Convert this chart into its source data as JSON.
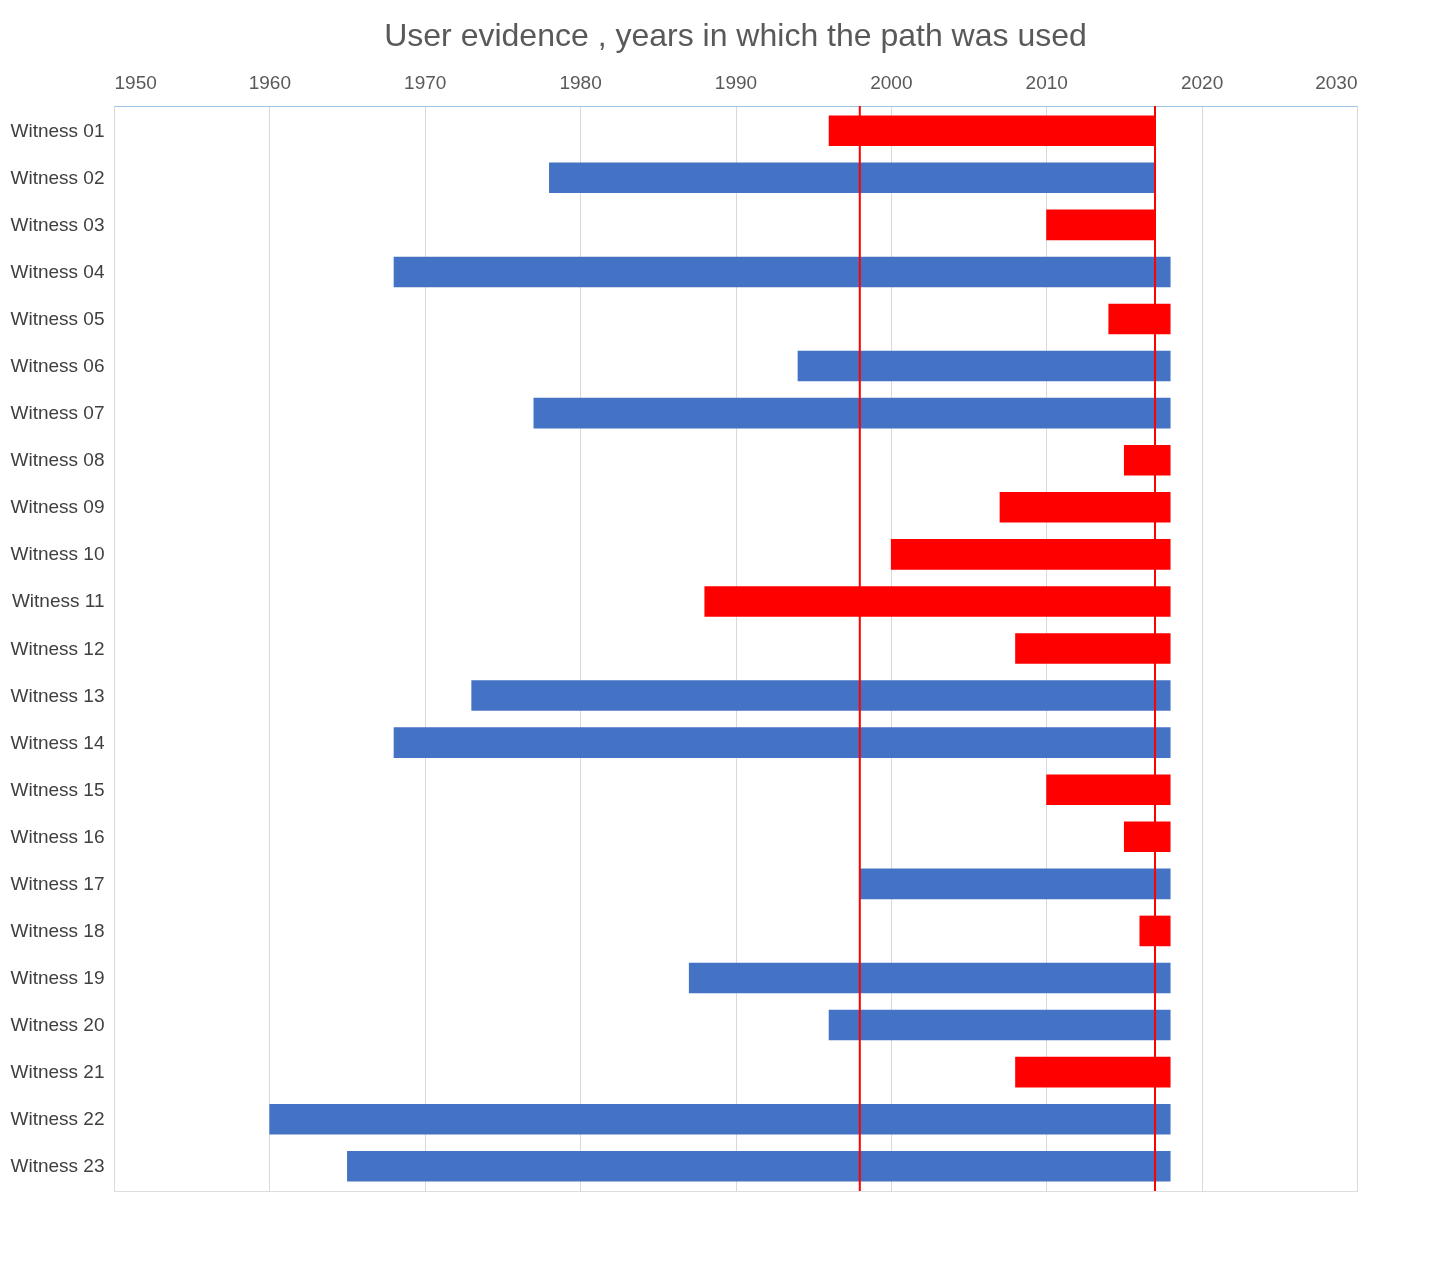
{
  "chart_data": {
    "type": "bar",
    "orientation": "horizontal",
    "title": "User evidence , years in which the path was used",
    "categories": [
      "Witness 01",
      "Witness 02",
      "Witness 03",
      "Witness 04",
      "Witness 05",
      "Witness 06",
      "Witness 07",
      "Witness 08",
      "Witness 09",
      "Witness 10",
      "Witness 11",
      "Witness 12",
      "Witness 13",
      "Witness 14",
      "Witness 15",
      "Witness 16",
      "Witness 17",
      "Witness 18",
      "Witness 19",
      "Witness 20",
      "Witness 21",
      "Witness 22",
      "Witness 23"
    ],
    "base": [
      1996,
      1978,
      2010,
      1968,
      2014,
      1994,
      1977,
      2015,
      2007,
      2000,
      1988,
      2008,
      1973,
      1968,
      2010,
      2015,
      1998,
      2016,
      1987,
      1996,
      2008,
      1960,
      1965
    ],
    "values": [
      21,
      39,
      7,
      50,
      4,
      24,
      41,
      3,
      11,
      18,
      30,
      10,
      45,
      50,
      8,
      3,
      20,
      2,
      31,
      22,
      10,
      58,
      53
    ],
    "colors": [
      "#ff0000",
      "#4472c4",
      "#ff0000",
      "#4472c4",
      "#ff0000",
      "#4472c4",
      "#4472c4",
      "#ff0000",
      "#ff0000",
      "#ff0000",
      "#ff0000",
      "#ff0000",
      "#4472c4",
      "#4472c4",
      "#ff0000",
      "#ff0000",
      "#4472c4",
      "#ff0000",
      "#4472c4",
      "#4472c4",
      "#ff0000",
      "#4472c4",
      "#4472c4"
    ],
    "xlim": [
      1950,
      2030
    ],
    "xticks": [
      1950,
      1960,
      1970,
      1980,
      1990,
      2000,
      2010,
      2020,
      2030
    ],
    "grid": "x",
    "ref_lines": [
      {
        "axis": "x",
        "value": 1998,
        "color": "#ff0000"
      },
      {
        "axis": "x",
        "value": 2017,
        "color": "#ff0000"
      }
    ]
  }
}
